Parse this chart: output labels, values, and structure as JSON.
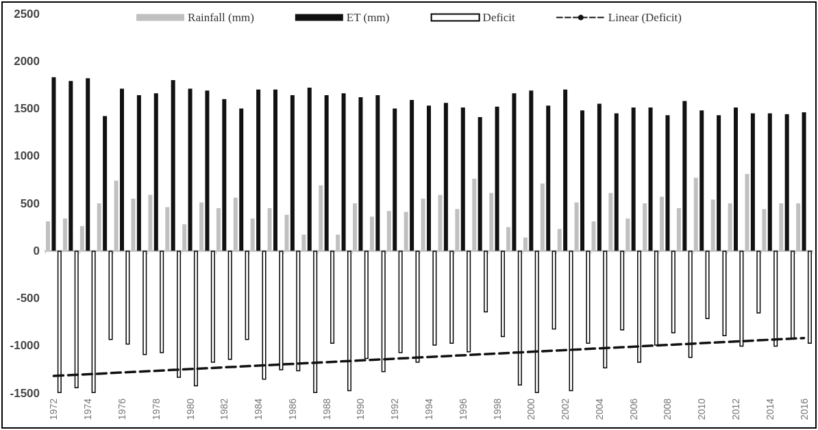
{
  "chart_data": {
    "type": "bar",
    "categories": [
      "1972",
      null,
      "1974",
      null,
      "1976",
      null,
      "1978",
      null,
      "1980",
      null,
      "1982",
      null,
      "1984",
      null,
      "1986",
      null,
      "1988",
      null,
      "1990",
      null,
      "1992",
      null,
      "1994",
      null,
      "1996",
      null,
      "1998",
      null,
      "2000",
      null,
      "2002",
      null,
      "2004",
      null,
      "2006",
      null,
      "2008",
      null,
      "2010",
      null,
      "2012",
      null,
      "2014",
      null,
      "2016"
    ],
    "series": [
      {
        "name": "Rainfall (mm)",
        "color": "#c0c0c0",
        "values": [
          310,
          340,
          260,
          500,
          740,
          550,
          590,
          460,
          280,
          510,
          450,
          560,
          340,
          450,
          380,
          170,
          690,
          170,
          500,
          360,
          420,
          410,
          550,
          590,
          440,
          760,
          610,
          250,
          140,
          710,
          230,
          510,
          310,
          610,
          340,
          500,
          570,
          450,
          770,
          540,
          500,
          810,
          440,
          500,
          500
        ]
      },
      {
        "name": "ET (mm)",
        "color": "#111111",
        "values": [
          1830,
          1790,
          1820,
          1420,
          1710,
          1640,
          1660,
          1800,
          1710,
          1690,
          1600,
          1500,
          1700,
          1700,
          1640,
          1720,
          1640,
          1660,
          1620,
          1640,
          1500,
          1590,
          1530,
          1560,
          1510,
          1410,
          1520,
          1660,
          1690,
          1530,
          1700,
          1480,
          1550,
          1450,
          1510,
          1510,
          1430,
          1580,
          1480,
          1430,
          1510,
          1450,
          1450,
          1440,
          1460
        ]
      },
      {
        "name": "Deficit",
        "color": "#ffffff",
        "values": [
          -1500,
          -1450,
          -1500,
          -940,
          -990,
          -1100,
          -1080,
          -1340,
          -1430,
          -1180,
          -1150,
          -940,
          -1360,
          -1260,
          -1270,
          -1500,
          -980,
          -1480,
          -1140,
          -1280,
          -1080,
          -1180,
          -1000,
          -980,
          -1070,
          -650,
          -910,
          -1420,
          -1500,
          -830,
          -1480,
          -980,
          -1240,
          -840,
          -1180,
          -1000,
          -870,
          -1130,
          -720,
          -900,
          -1010,
          -660,
          -1010,
          -930,
          -980
        ]
      },
      {
        "name": "Linear (Deficit)",
        "type": "line",
        "color": "#111111",
        "line_style": "dashed",
        "marker": "none",
        "values": [
          -1320,
          null,
          null,
          null,
          null,
          null,
          null,
          null,
          null,
          null,
          null,
          null,
          null,
          null,
          null,
          null,
          null,
          null,
          null,
          null,
          null,
          null,
          null,
          null,
          null,
          null,
          null,
          null,
          null,
          null,
          null,
          null,
          null,
          null,
          null,
          null,
          null,
          null,
          null,
          null,
          null,
          null,
          null,
          null,
          -920
        ]
      }
    ],
    "ylim": [
      -1500,
      2500
    ],
    "yticks": [
      -1500,
      -1000,
      -500,
      0,
      500,
      1000,
      1500,
      2000,
      2500
    ],
    "legend": "top"
  }
}
